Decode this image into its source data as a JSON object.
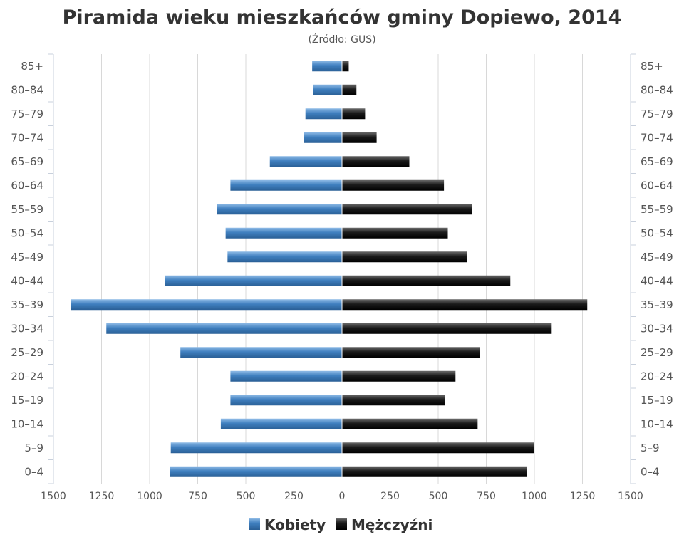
{
  "chart_data": {
    "type": "bar",
    "title": "Piramida wieku mieszkańców gminy Dopiewo, 2014",
    "subtitle": "(Źródło: GUS)",
    "categories": [
      "85+",
      "80–84",
      "75–79",
      "70–74",
      "65–69",
      "60–64",
      "55–59",
      "50–54",
      "45–49",
      "40–44",
      "35–39",
      "30–34",
      "25–29",
      "20–24",
      "15–19",
      "10–14",
      "5–9",
      "0–4"
    ],
    "series": [
      {
        "name": "Kobiety",
        "color": "#3f7fbf",
        "values": [
          155,
          150,
          190,
          200,
          375,
          580,
          650,
          605,
          595,
          920,
          1410,
          1225,
          840,
          580,
          580,
          630,
          890,
          895
        ]
      },
      {
        "name": "Mężczyźni",
        "color": "#1a1a1a",
        "values": [
          35,
          75,
          120,
          180,
          350,
          530,
          675,
          550,
          650,
          875,
          1275,
          1090,
          715,
          590,
          535,
          705,
          1000,
          960
        ]
      }
    ],
    "xlim": [
      -1500,
      1500
    ],
    "xticks": [
      -1500,
      -1250,
      -1000,
      -750,
      -500,
      -250,
      0,
      250,
      500,
      750,
      1000,
      1250,
      1500
    ],
    "xtick_labels": [
      "1500",
      "1250",
      "1000",
      "750",
      "500",
      "250",
      "0",
      "250",
      "500",
      "750",
      "1000",
      "1250",
      "1500"
    ],
    "grid": true,
    "legend_position": "bottom-center"
  }
}
